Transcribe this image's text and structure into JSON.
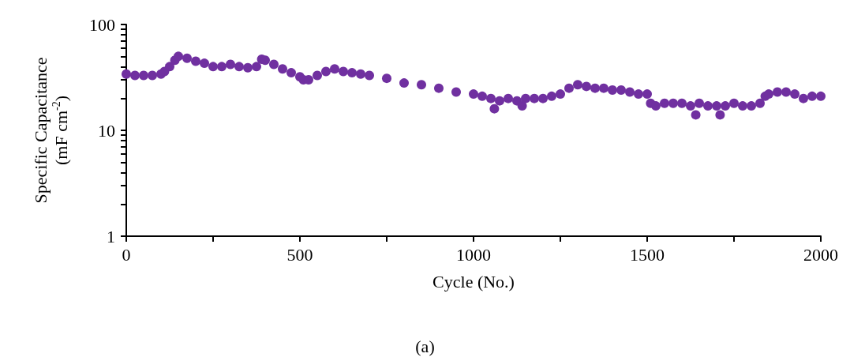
{
  "chart_data": {
    "type": "scatter",
    "xlabel": "Cycle (No.)",
    "ylabel": "Specific Capacitance\n(mF cm$^{-2}$)",
    "annotations": [
      "(a)"
    ],
    "log": "y",
    "grid": false,
    "marker": "circle",
    "xlim": [
      0,
      2000
    ],
    "xticks": [
      0,
      {
        "value": 250,
        "label": null
      },
      500,
      {
        "value": 750,
        "label": null
      },
      1000,
      {
        "value": 1250,
        "label": null
      },
      1500,
      {
        "value": 1750,
        "label": null
      },
      2000
    ],
    "ylim": [
      1,
      100
    ],
    "yticks": [
      1,
      10,
      100
    ],
    "series": [
      {
        "color": "#7030a0",
        "x": [
          0,
          25,
          50,
          75,
          100,
          110,
          125,
          140,
          150,
          175,
          200,
          225,
          250,
          275,
          300,
          325,
          350,
          375,
          390,
          400,
          425,
          450,
          475,
          500,
          510,
          525,
          550,
          575,
          600,
          625,
          650,
          675,
          700,
          750,
          800,
          850,
          900,
          950,
          1000,
          1025,
          1050,
          1060,
          1075,
          1100,
          1125,
          1140,
          1150,
          1175,
          1200,
          1225,
          1250,
          1275,
          1300,
          1325,
          1350,
          1375,
          1400,
          1425,
          1450,
          1475,
          1500,
          1510,
          1525,
          1550,
          1575,
          1600,
          1625,
          1640,
          1650,
          1675,
          1700,
          1710,
          1725,
          1750,
          1775,
          1800,
          1825,
          1840,
          1850,
          1875,
          1900,
          1925,
          1950,
          1975,
          2000
        ],
        "values": [
          34,
          33,
          33,
          33,
          34,
          36,
          40,
          46,
          50,
          48,
          45,
          43,
          40,
          40,
          42,
          40,
          39,
          40,
          47,
          46,
          42,
          38,
          35,
          32,
          30,
          30,
          33,
          36,
          38,
          36,
          35,
          34,
          33,
          31,
          28,
          27,
          25,
          23,
          22,
          21,
          20,
          16,
          19,
          20,
          19,
          17,
          20,
          20,
          20,
          21,
          22,
          25,
          27,
          26,
          25,
          25,
          24,
          24,
          23,
          22,
          22,
          18,
          17,
          18,
          18,
          18,
          17,
          14,
          18,
          17,
          17,
          14,
          17,
          18,
          17,
          17,
          18,
          21,
          22,
          23,
          23,
          22,
          20,
          21,
          21
        ]
      }
    ]
  }
}
